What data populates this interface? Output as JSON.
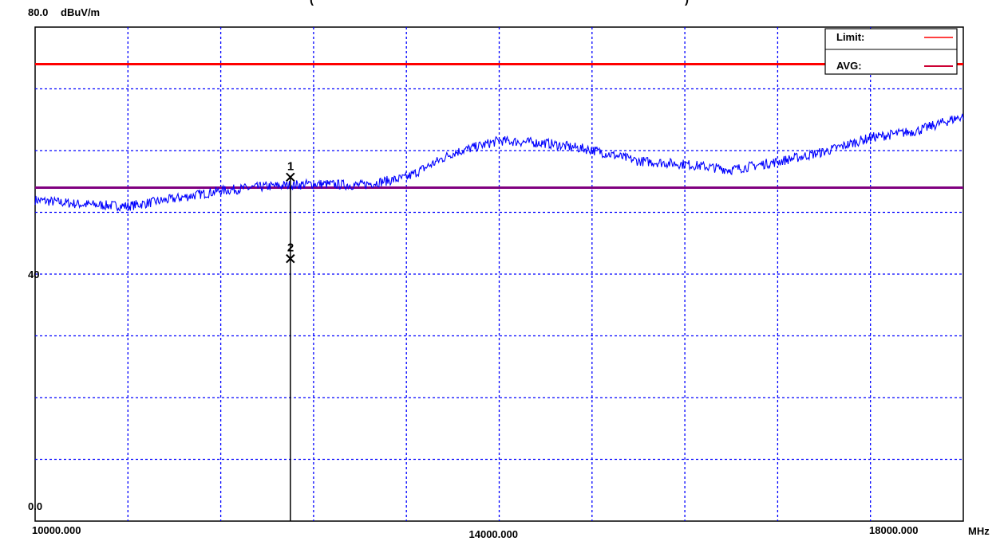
{
  "chart_data": {
    "type": "line",
    "title_fragment": "(",
    "title_fragment_right": ")",
    "y_unit": "dBuV/m",
    "x_unit": "MHz",
    "xlim": [
      10000,
      18000
    ],
    "ylim": [
      0,
      80
    ],
    "y_tick_labels": [
      {
        "value": 0,
        "label": "0.0"
      },
      {
        "value": 40,
        "label": "40"
      },
      {
        "value": 80,
        "label": "80.0"
      }
    ],
    "x_tick_labels": [
      {
        "value": 10000,
        "label": "10000.000"
      },
      {
        "value": 14000,
        "label": "14000.000"
      },
      {
        "value": 18000,
        "label": "18000.000"
      }
    ],
    "grid": true,
    "x_grid_step": 800,
    "y_grid_step": 10,
    "legend": {
      "placement": "top-right",
      "entries": [
        {
          "label": "Limit:",
          "color": "#ff0000"
        },
        {
          "label": "AVG:",
          "color": "#cc0033"
        }
      ]
    },
    "limit_lines": [
      {
        "name": "Limit",
        "value": 74.0,
        "color": "#ff0000"
      },
      {
        "name": "AVG",
        "value": 54.0,
        "color": "#800080"
      }
    ],
    "trace": {
      "color": "#0000ff",
      "x": [
        10000,
        10400,
        10800,
        11200,
        11600,
        12000,
        12400,
        12800,
        13200,
        13600,
        14000,
        14400,
        14800,
        15200,
        15600,
        16000,
        16400,
        16800,
        17200,
        17600,
        18000
      ],
      "y": [
        52.0,
        51.3,
        51.0,
        52.2,
        53.5,
        54.2,
        54.6,
        54.4,
        55.6,
        59.6,
        61.6,
        61.2,
        60.1,
        58.3,
        57.8,
        56.9,
        58.2,
        59.8,
        62.1,
        63.2,
        65.6
      ]
    },
    "markers": [
      {
        "label": "1",
        "x": 12200,
        "y": 55.7
      },
      {
        "label": "2",
        "x": 12200,
        "y": 42.5
      }
    ],
    "marker_line_x": 12200
  }
}
